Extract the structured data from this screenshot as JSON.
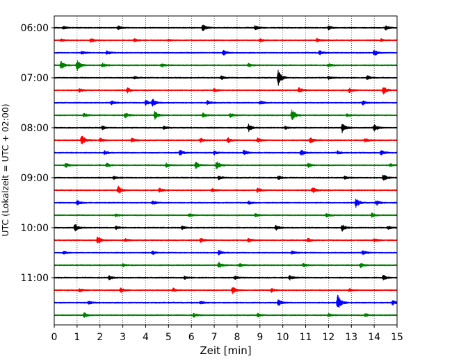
{
  "chart_data": {
    "type": "line",
    "xlabel": "Zeit  [min]",
    "ylabel": "UTC (Lokalzeit = UTC + 02:00)",
    "xlim": [
      0,
      15
    ],
    "x_ticks": [
      0,
      1,
      2,
      3,
      4,
      5,
      6,
      7,
      8,
      9,
      10,
      11,
      12,
      13,
      14,
      15
    ],
    "y_tick_labels": [
      "06:00",
      "07:00",
      "08:00",
      "09:00",
      "10:00",
      "11:00"
    ],
    "grid": "vertical dotted",
    "trace_interval_minutes": 15,
    "color_cycle": [
      "#000000",
      "#ff0000",
      "#0000ff",
      "#008000"
    ],
    "traces": [
      {
        "start": "06:00",
        "color": "#000000",
        "events": [
          [
            0.4,
            0.6
          ],
          [
            2.8,
            0.8
          ],
          [
            6.5,
            1.6
          ],
          [
            8.8,
            1.2
          ],
          [
            12.0,
            0.8
          ],
          [
            14.5,
            1.0
          ]
        ]
      },
      {
        "start": "06:15",
        "color": "#ff0000",
        "events": [
          [
            0.3,
            0.5
          ],
          [
            1.6,
            1.0
          ],
          [
            3.5,
            0.7
          ],
          [
            5.0,
            0.5
          ],
          [
            9.0,
            0.7
          ],
          [
            11.5,
            0.9
          ],
          [
            14.3,
            0.6
          ]
        ]
      },
      {
        "start": "06:30",
        "color": "#0000ff",
        "events": [
          [
            1.2,
            0.8
          ],
          [
            2.3,
            0.9
          ],
          [
            7.4,
            1.1
          ],
          [
            11.6,
            1.0
          ],
          [
            14.0,
            1.4
          ]
        ]
      },
      {
        "start": "06:45",
        "color": "#008000",
        "events": [
          [
            0.3,
            1.8
          ],
          [
            1.0,
            2.6
          ],
          [
            2.1,
            1.2
          ],
          [
            4.7,
            0.9
          ],
          [
            8.5,
            0.8
          ],
          [
            12.0,
            0.8
          ]
        ]
      },
      {
        "start": "07:00",
        "color": "#000000",
        "events": [
          [
            3.5,
            0.6
          ],
          [
            7.3,
            0.8
          ],
          [
            9.8,
            3.5
          ],
          [
            12.0,
            0.8
          ],
          [
            13.7,
            1.1
          ]
        ]
      },
      {
        "start": "07:15",
        "color": "#ff0000",
        "events": [
          [
            1.1,
            0.9
          ],
          [
            3.2,
            1.2
          ],
          [
            7.0,
            0.8
          ],
          [
            10.7,
            1.4
          ],
          [
            12.9,
            1.2
          ],
          [
            14.4,
            1.9
          ]
        ]
      },
      {
        "start": "07:30",
        "color": "#0000ff",
        "events": [
          [
            2.5,
            0.9
          ],
          [
            4.0,
            1.2
          ],
          [
            4.3,
            1.6
          ],
          [
            6.7,
            0.9
          ],
          [
            9.0,
            1.0
          ],
          [
            13.5,
            1.0
          ]
        ]
      },
      {
        "start": "07:45",
        "color": "#008000",
        "events": [
          [
            1.3,
            0.8
          ],
          [
            3.1,
            1.3
          ],
          [
            4.4,
            1.9
          ],
          [
            6.5,
            1.0
          ],
          [
            7.7,
            1.0
          ],
          [
            10.4,
            2.8
          ],
          [
            12.8,
            0.7
          ]
        ]
      },
      {
        "start": "08:00",
        "color": "#000000",
        "events": [
          [
            2.1,
            0.8
          ],
          [
            4.8,
            0.7
          ],
          [
            8.5,
            1.8
          ],
          [
            10.1,
            0.7
          ],
          [
            12.6,
            2.2
          ],
          [
            14.0,
            1.6
          ]
        ]
      },
      {
        "start": "08:15",
        "color": "#ff0000",
        "events": [
          [
            1.2,
            2.4
          ],
          [
            2.0,
            1.0
          ],
          [
            3.4,
            1.0
          ],
          [
            6.4,
            0.9
          ],
          [
            7.6,
            1.2
          ],
          [
            8.9,
            1.1
          ],
          [
            11.2,
            1.4
          ],
          [
            13.6,
            0.9
          ]
        ]
      },
      {
        "start": "08:30",
        "color": "#0000ff",
        "events": [
          [
            2.2,
            0.8
          ],
          [
            5.5,
            1.3
          ],
          [
            7.0,
            0.9
          ],
          [
            8.3,
            1.2
          ],
          [
            10.8,
            1.4
          ],
          [
            12.4,
            0.8
          ],
          [
            14.3,
            1.2
          ]
        ]
      },
      {
        "start": "08:45",
        "color": "#008000",
        "events": [
          [
            0.5,
            1.0
          ],
          [
            2.3,
            0.8
          ],
          [
            4.9,
            1.0
          ],
          [
            6.2,
            1.6
          ],
          [
            7.1,
            2.1
          ],
          [
            11.1,
            1.0
          ],
          [
            14.7,
            0.7
          ]
        ]
      },
      {
        "start": "09:00",
        "color": "#000000",
        "events": [
          [
            2.6,
            0.6
          ],
          [
            7.2,
            0.8
          ],
          [
            9.8,
            0.9
          ],
          [
            12.7,
            0.7
          ],
          [
            14.4,
            1.6
          ]
        ]
      },
      {
        "start": "09:15",
        "color": "#ff0000",
        "events": [
          [
            2.8,
            1.8
          ],
          [
            4.6,
            1.0
          ],
          [
            6.9,
            0.9
          ],
          [
            8.9,
            1.2
          ],
          [
            11.3,
            1.5
          ]
        ]
      },
      {
        "start": "09:30",
        "color": "#0000ff",
        "events": [
          [
            1.0,
            1.1
          ],
          [
            4.3,
            0.9
          ],
          [
            8.5,
            0.8
          ],
          [
            13.2,
            2.3
          ],
          [
            14.1,
            1.2
          ]
        ]
      },
      {
        "start": "09:45",
        "color": "#008000",
        "events": [
          [
            2.7,
            0.7
          ],
          [
            5.9,
            0.7
          ],
          [
            8.8,
            0.7
          ],
          [
            11.9,
            1.0
          ],
          [
            13.9,
            1.0
          ]
        ]
      },
      {
        "start": "10:00",
        "color": "#000000",
        "events": [
          [
            0.9,
            1.9
          ],
          [
            2.7,
            0.8
          ],
          [
            5.6,
            0.8
          ],
          [
            9.7,
            1.2
          ],
          [
            12.6,
            1.7
          ],
          [
            14.6,
            0.7
          ]
        ]
      },
      {
        "start": "10:15",
        "color": "#ff0000",
        "events": [
          [
            1.9,
            1.8
          ],
          [
            3.1,
            0.8
          ],
          [
            6.4,
            0.9
          ],
          [
            8.5,
            0.8
          ],
          [
            11.1,
            0.9
          ],
          [
            14.0,
            0.7
          ]
        ]
      },
      {
        "start": "10:30",
        "color": "#0000ff",
        "events": [
          [
            0.4,
            0.7
          ],
          [
            4.3,
            0.8
          ],
          [
            7.2,
            1.2
          ],
          [
            10.4,
            0.8
          ],
          [
            13.5,
            1.0
          ]
        ]
      },
      {
        "start": "10:45",
        "color": "#008000",
        "events": [
          [
            3.0,
            0.7
          ],
          [
            7.2,
            1.6
          ],
          [
            8.1,
            0.8
          ],
          [
            10.9,
            0.8
          ],
          [
            13.4,
            1.0
          ]
        ]
      },
      {
        "start": "11:00",
        "color": "#000000",
        "events": [
          [
            2.4,
            0.9
          ],
          [
            5.7,
            0.7
          ],
          [
            7.9,
            0.8
          ],
          [
            10.3,
            0.9
          ],
          [
            14.4,
            1.1
          ]
        ]
      },
      {
        "start": "11:15",
        "color": "#ff0000",
        "events": [
          [
            1.1,
            0.8
          ],
          [
            2.9,
            1.1
          ],
          [
            5.2,
            0.8
          ],
          [
            7.8,
            1.5
          ],
          [
            9.5,
            0.9
          ],
          [
            12.9,
            0.7
          ]
        ]
      },
      {
        "start": "11:30",
        "color": "#0000ff",
        "events": [
          [
            1.5,
            0.7
          ],
          [
            6.4,
            0.7
          ],
          [
            9.8,
            1.5
          ],
          [
            12.4,
            3.6
          ],
          [
            14.8,
            1.0
          ]
        ]
      },
      {
        "start": "11:45",
        "color": "#008000",
        "events": [
          [
            1.3,
            1.2
          ],
          [
            6.1,
            0.9
          ],
          [
            8.9,
            0.8
          ],
          [
            12.0,
            0.7
          ],
          [
            13.6,
            0.8
          ]
        ]
      }
    ]
  }
}
